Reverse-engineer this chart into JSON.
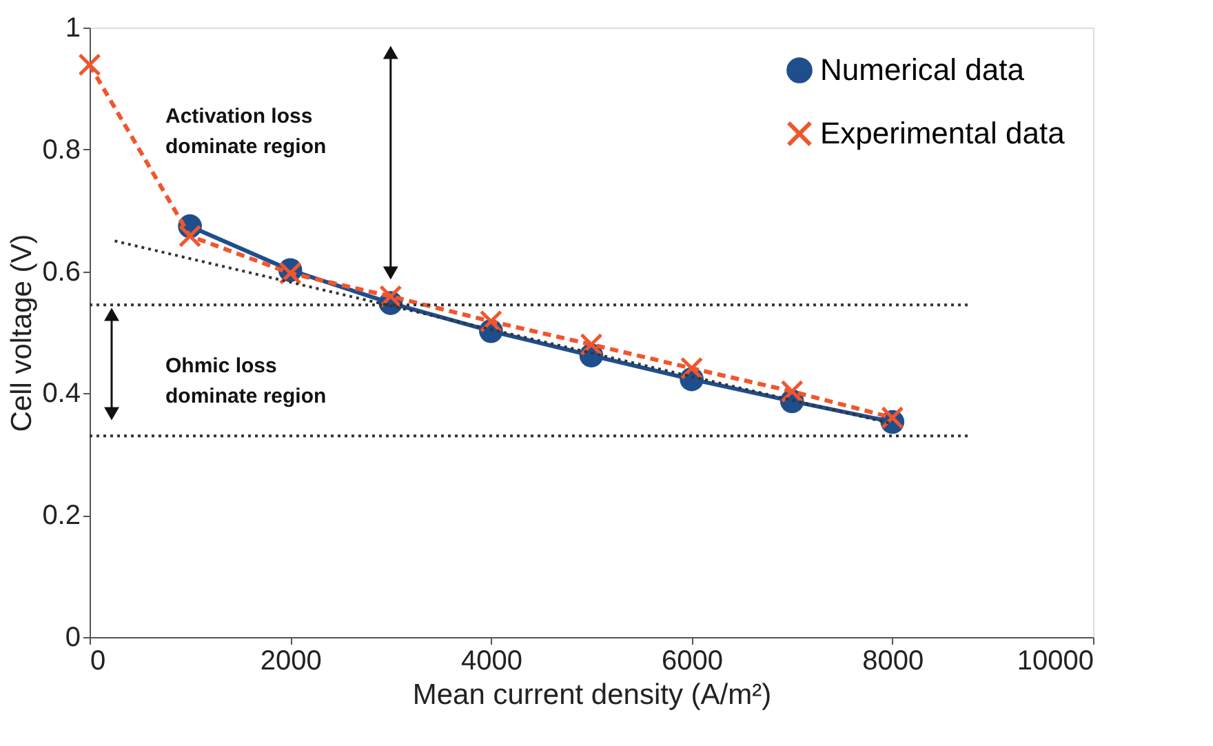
{
  "chart_data": {
    "type": "line",
    "xlabel": "Mean current density (A/m²)",
    "ylabel": "Cell voltage (V)",
    "xlim": [
      0,
      10000
    ],
    "xticks": [
      0,
      2000,
      4000,
      6000,
      8000,
      10000
    ],
    "ylim": [
      0,
      1
    ],
    "yticks": [
      0,
      0.2,
      0.4,
      0.6,
      0.8,
      1
    ],
    "grid": false,
    "legend": "top right",
    "series": [
      {
        "name": "Numerical data",
        "color": "#1f4e8c",
        "marker": "circle",
        "line_style": "solid",
        "x": [
          1000,
          2000,
          3000,
          4000,
          5000,
          6000,
          7000,
          8000
        ],
        "values": [
          0.674,
          0.602,
          0.548,
          0.502,
          0.462,
          0.423,
          0.387,
          0.353
        ]
      },
      {
        "name": "Experimental data",
        "color": "#f0562e",
        "marker": "cross",
        "line_style": "dashed",
        "x": [
          0,
          1000,
          2000,
          3000,
          4000,
          5000,
          6000,
          7000,
          8000
        ],
        "values": [
          0.939,
          0.658,
          0.597,
          0.559,
          0.518,
          0.48,
          0.441,
          0.403,
          0.36
        ]
      },
      {
        "color": "#333333",
        "marker": "none",
        "line_style": "dotted",
        "x": [
          250,
          8000
        ],
        "values": [
          0.65,
          0.35
        ]
      }
    ],
    "ref_lines": [
      {
        "axis": "y",
        "value": 0.545,
        "color": "#333333",
        "line_style": "dotted"
      },
      {
        "axis": "y",
        "value": 0.33,
        "color": "#333333",
        "line_style": "dotted"
      }
    ],
    "annotations": [
      "Activation loss\ndominate region",
      "Ohmic loss\ndominate region"
    ]
  }
}
